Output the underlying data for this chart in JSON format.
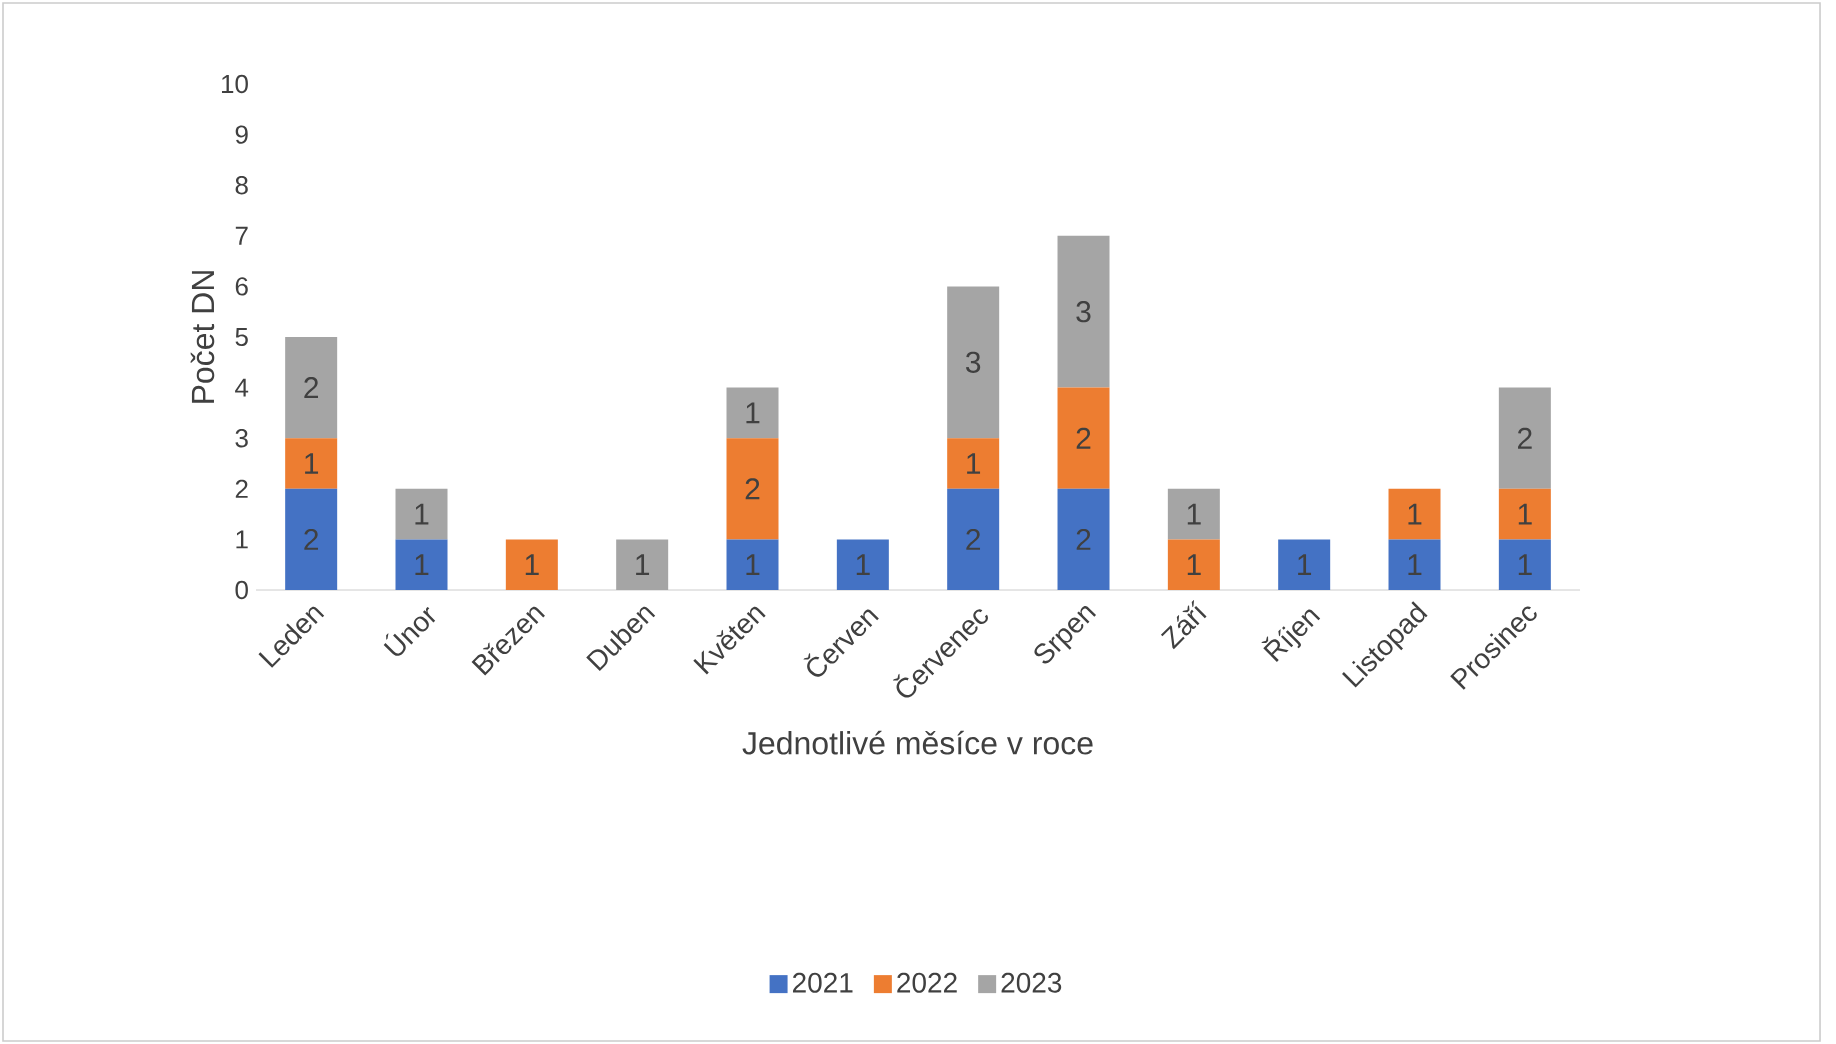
{
  "chart_data": {
    "type": "bar",
    "stacked": true,
    "xlabel": "Jednotlivé měsíce v roce",
    "ylabel": "Počet DN",
    "categories": [
      "Leden",
      "Únor",
      "Březen",
      "Duben",
      "Květen",
      "Červen",
      "Červenec",
      "Srpen",
      "Září",
      "Říjen",
      "Listopad",
      "Prosinec"
    ],
    "series": [
      {
        "name": "2021",
        "color": "#4472c4",
        "values": [
          2,
          1,
          0,
          0,
          1,
          1,
          2,
          2,
          0,
          1,
          1,
          1
        ],
        "value_labels": [
          "2",
          "1",
          null,
          null,
          "1",
          "1",
          "2",
          "2",
          null,
          "1",
          "1",
          "1"
        ]
      },
      {
        "name": "2022",
        "color": "#ed7d31",
        "values": [
          1,
          0,
          1,
          0,
          2,
          0,
          1,
          2,
          1,
          0,
          1,
          1
        ],
        "value_labels": [
          "1",
          null,
          "1",
          null,
          "2",
          null,
          "1",
          "2",
          "1",
          null,
          "1",
          "1"
        ]
      },
      {
        "name": "2023",
        "color": "#a5a5a5",
        "values": [
          2,
          1,
          0,
          1,
          1,
          0,
          3,
          3,
          1,
          0,
          0,
          2
        ],
        "value_labels": [
          "2",
          "1",
          null,
          "1",
          "1",
          null,
          "3",
          "3",
          "1",
          null,
          null,
          "2"
        ]
      }
    ],
    "ylim": [
      0,
      10
    ],
    "yticks": [
      0,
      1,
      2,
      3,
      4,
      5,
      6,
      7,
      8,
      9,
      10
    ],
    "grid": false,
    "legend": "bottom"
  }
}
